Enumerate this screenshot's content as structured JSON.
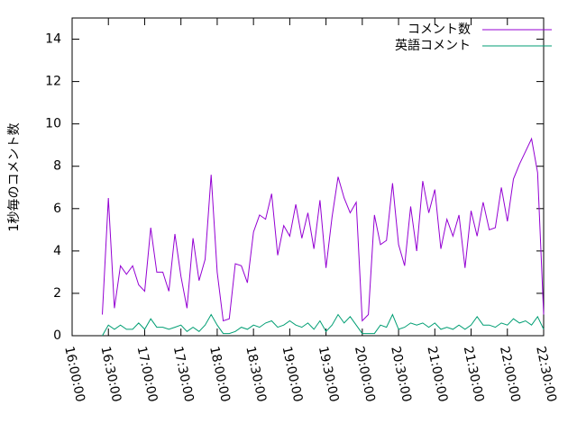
{
  "chart_data": {
    "type": "line",
    "ylabel": "1秒毎のコメント数",
    "x": [
      "16:25:00",
      "16:30:00",
      "16:35:00",
      "16:40:00",
      "16:45:00",
      "16:50:00",
      "16:55:00",
      "17:00:00",
      "17:05:00",
      "17:10:00",
      "17:15:00",
      "17:20:00",
      "17:25:00",
      "17:30:00",
      "17:35:00",
      "17:40:00",
      "17:45:00",
      "17:50:00",
      "17:55:00",
      "18:00:00",
      "18:05:00",
      "18:10:00",
      "18:15:00",
      "18:20:00",
      "18:25:00",
      "18:30:00",
      "18:35:00",
      "18:40:00",
      "18:45:00",
      "18:50:00",
      "18:55:00",
      "19:00:00",
      "19:05:00",
      "19:10:00",
      "19:15:00",
      "19:20:00",
      "19:25:00",
      "19:30:00",
      "19:35:00",
      "19:40:00",
      "19:45:00",
      "19:50:00",
      "19:55:00",
      "20:00:00",
      "20:05:00",
      "20:10:00",
      "20:15:00",
      "20:20:00",
      "20:25:00",
      "20:30:00",
      "20:35:00",
      "20:40:00",
      "20:45:00",
      "20:50:00",
      "20:55:00",
      "21:00:00",
      "21:05:00",
      "21:10:00",
      "21:15:00",
      "21:20:00",
      "21:25:00",
      "21:30:00",
      "21:35:00",
      "21:40:00",
      "21:45:00",
      "21:50:00",
      "21:55:00",
      "22:00:00",
      "22:05:00",
      "22:10:00",
      "22:15:00",
      "22:20:00",
      "22:25:00",
      "22:30:00"
    ],
    "series": [
      {
        "name": "コメント数",
        "color": "#9400d3",
        "values": [
          1.0,
          6.5,
          1.3,
          3.3,
          2.9,
          3.3,
          2.4,
          2.1,
          5.1,
          3.0,
          3.0,
          2.1,
          4.8,
          2.8,
          1.3,
          4.6,
          2.6,
          3.6,
          7.6,
          3.0,
          0.7,
          0.8,
          3.4,
          3.3,
          2.5,
          4.9,
          5.7,
          5.5,
          6.7,
          3.8,
          5.2,
          4.7,
          6.2,
          4.6,
          5.8,
          4.1,
          6.4,
          3.2,
          5.6,
          7.5,
          6.5,
          5.8,
          6.3,
          0.7,
          1.0,
          5.7,
          4.3,
          4.5,
          7.2,
          4.3,
          3.3,
          6.1,
          4.0,
          7.3,
          5.8,
          6.9,
          4.1,
          5.5,
          4.7,
          5.7,
          3.2,
          5.9,
          4.7,
          6.3,
          5.0,
          5.1,
          7.0,
          5.4,
          7.4,
          8.1,
          8.7,
          9.3,
          7.7,
          1.0
        ]
      },
      {
        "name": "英語コメント",
        "color": "#009e73",
        "values": [
          0.0,
          0.5,
          0.3,
          0.5,
          0.3,
          0.3,
          0.6,
          0.3,
          0.8,
          0.4,
          0.4,
          0.3,
          0.4,
          0.5,
          0.2,
          0.4,
          0.2,
          0.5,
          1.0,
          0.5,
          0.1,
          0.1,
          0.2,
          0.4,
          0.3,
          0.5,
          0.4,
          0.6,
          0.7,
          0.4,
          0.5,
          0.7,
          0.5,
          0.4,
          0.6,
          0.3,
          0.7,
          0.2,
          0.5,
          1.0,
          0.6,
          0.9,
          0.5,
          0.1,
          0.1,
          0.1,
          0.5,
          0.4,
          1.0,
          0.3,
          0.4,
          0.6,
          0.5,
          0.6,
          0.4,
          0.6,
          0.3,
          0.4,
          0.3,
          0.5,
          0.3,
          0.5,
          0.9,
          0.5,
          0.5,
          0.4,
          0.6,
          0.5,
          0.8,
          0.6,
          0.7,
          0.5,
          0.9,
          0.3
        ]
      }
    ],
    "xlim": [
      "16:00:00",
      "22:30:00"
    ],
    "xticks": [
      "16:00:00",
      "16:30:00",
      "17:00:00",
      "17:30:00",
      "18:00:00",
      "18:30:00",
      "19:00:00",
      "19:30:00",
      "20:00:00",
      "20:30:00",
      "21:00:00",
      "21:30:00",
      "22:00:00",
      "22:30:00"
    ],
    "ylim": [
      0,
      15
    ],
    "yticks": [
      0,
      2,
      4,
      6,
      8,
      10,
      12,
      14
    ],
    "legend": "top-right"
  }
}
